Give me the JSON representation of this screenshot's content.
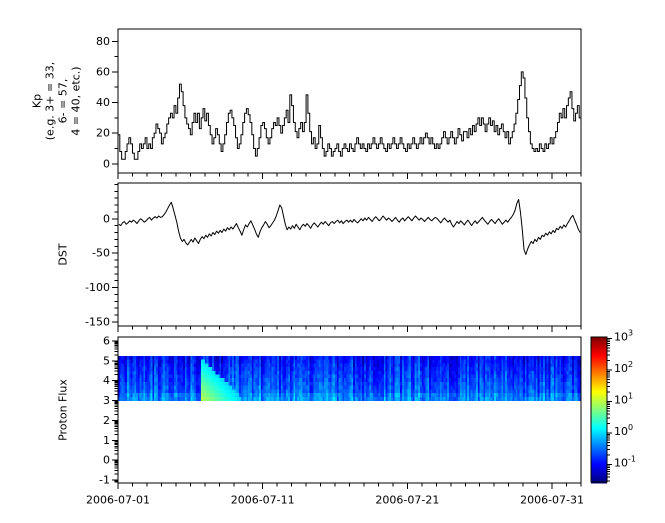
{
  "figure": {
    "background": "#ffffff",
    "axis_color": "#000000",
    "line_color": "#000000"
  },
  "x_axis": {
    "domain_days": [
      0,
      32
    ],
    "major_tick_days": [
      0,
      10,
      20,
      30
    ],
    "major_tick_labels": [
      "2006-07-01",
      "2006-07-11",
      "2006-07-21",
      "2006-07-31"
    ],
    "minor_tick_interval_days": 1
  },
  "chart_data": [
    {
      "id": "kp",
      "type": "line",
      "style": "step",
      "ylabel_lines": [
        "Kp",
        "(e.g. 3+ = 33,",
        "6- = 57,",
        "4 = 40, etc.)"
      ],
      "ylim": [
        -6,
        88
      ],
      "yticks": [
        0,
        20,
        40,
        60,
        80
      ],
      "y_minor_interval": 10,
      "x_interval_days": 0.125,
      "values_by_day": [
        [
          19,
          8,
          3,
          3,
          8,
          13,
          17,
          13
        ],
        [
          7,
          3,
          3,
          8,
          13,
          10,
          13,
          17
        ],
        [
          10,
          13,
          10,
          17,
          20,
          26,
          23,
          20
        ],
        [
          13,
          17,
          20,
          26,
          30,
          33,
          30,
          38
        ],
        [
          33,
          43,
          52,
          47,
          38,
          30,
          26,
          23
        ],
        [
          19,
          27,
          33,
          27,
          33,
          23,
          30,
          36
        ],
        [
          28,
          33,
          25,
          19,
          13,
          17,
          23,
          19
        ],
        [
          13,
          8,
          13,
          19,
          27,
          33,
          35,
          30
        ],
        [
          25,
          17,
          10,
          13,
          19,
          27,
          33,
          36
        ],
        [
          32,
          27,
          19,
          10,
          5,
          10,
          17,
          25
        ],
        [
          27,
          23,
          17,
          13,
          17,
          23,
          27,
          25
        ],
        [
          30,
          25,
          20,
          25,
          30,
          35,
          27,
          45
        ],
        [
          38,
          27,
          21,
          17,
          23,
          27,
          21,
          27
        ],
        [
          45,
          33,
          21,
          13,
          17,
          10,
          13,
          25
        ],
        [
          17,
          10,
          5,
          8,
          13,
          10,
          5,
          8
        ],
        [
          10,
          13,
          8,
          5,
          10,
          13,
          10,
          8
        ],
        [
          13,
          10,
          8,
          13,
          17,
          13,
          10,
          13
        ],
        [
          10,
          8,
          13,
          10,
          13,
          17,
          13,
          10
        ],
        [
          13,
          17,
          13,
          10,
          8,
          13,
          10,
          13
        ],
        [
          17,
          13,
          10,
          13,
          17,
          13,
          10,
          8
        ],
        [
          13,
          10,
          13,
          17,
          13,
          10,
          13,
          17
        ],
        [
          13,
          17,
          20,
          17,
          13,
          17,
          13,
          10
        ],
        [
          13,
          10,
          13,
          17,
          21,
          17,
          13,
          17
        ],
        [
          21,
          17,
          13,
          17,
          23,
          19,
          15,
          21
        ],
        [
          21,
          17,
          23,
          19,
          25,
          21,
          26,
          30
        ],
        [
          25,
          30,
          26,
          21,
          26,
          30,
          25,
          28
        ],
        [
          21,
          25,
          19,
          23,
          26,
          21,
          17,
          21
        ],
        [
          13,
          17,
          21,
          26,
          33,
          42,
          51,
          60
        ],
        [
          56,
          43,
          30,
          21,
          13,
          10,
          8,
          10
        ],
        [
          8,
          13,
          10,
          8,
          13,
          10,
          13,
          17
        ],
        [
          13,
          17,
          21,
          27,
          33,
          30,
          36,
          30
        ],
        [
          38,
          43,
          47,
          36,
          28,
          33,
          38,
          30
        ]
      ]
    },
    {
      "id": "dst",
      "type": "line",
      "style": "linear",
      "ylabel": "DST",
      "ylim": [
        -156,
        52
      ],
      "yticks": [
        0,
        -50,
        -100,
        -150
      ],
      "y_minor_interval": 10,
      "x_interval_days": 0.125,
      "values_by_day": [
        [
          -8,
          -10,
          -6,
          -4,
          -8,
          -6,
          -3,
          -5
        ],
        [
          -2,
          -4,
          -7,
          -3,
          0,
          -2,
          -5,
          -3
        ],
        [
          0,
          2,
          -2,
          1,
          3,
          1,
          4,
          2
        ],
        [
          3,
          6,
          10,
          15,
          20,
          24,
          15,
          5
        ],
        [
          -5,
          -18,
          -28,
          -33,
          -30,
          -35,
          -38,
          -34
        ],
        [
          -30,
          -34,
          -28,
          -32,
          -36,
          -30,
          -26,
          -29
        ],
        [
          -24,
          -27,
          -22,
          -25,
          -20,
          -23,
          -18,
          -21
        ],
        [
          -17,
          -20,
          -15,
          -18,
          -13,
          -16,
          -12,
          -15
        ],
        [
          -11,
          -7,
          -13,
          -18,
          -24,
          -16,
          -9,
          -12
        ],
        [
          -7,
          -3,
          -9,
          -15,
          -22,
          -27,
          -19,
          -13
        ],
        [
          -9,
          -4,
          -8,
          -13,
          -10,
          -6,
          -2,
          4
        ],
        [
          12,
          20,
          16,
          4,
          -8,
          -16,
          -12,
          -15
        ],
        [
          -10,
          -14,
          -8,
          -12,
          -16,
          -11,
          -8,
          -11
        ],
        [
          -7,
          -10,
          -14,
          -9,
          -6,
          -9,
          -12,
          -8
        ],
        [
          -5,
          -8,
          -4,
          -7,
          -10,
          -6,
          -4,
          -7
        ],
        [
          -4,
          -2,
          -6,
          -3,
          -7,
          -4,
          -2,
          -5
        ],
        [
          -2,
          -5,
          -1,
          -4,
          -6,
          -3,
          0,
          -3
        ],
        [
          1,
          -2,
          2,
          -1,
          -4,
          0,
          3,
          0
        ],
        [
          -3,
          0,
          4,
          1,
          -2,
          1,
          -1,
          -4
        ],
        [
          -1,
          2,
          -2,
          -5,
          -1,
          1,
          -3,
          0
        ],
        [
          3,
          0,
          -3,
          1,
          4,
          1,
          -2,
          1
        ],
        [
          -1,
          -4,
          -1,
          2,
          -1,
          -3,
          0,
          2
        ],
        [
          0,
          -3,
          -6,
          -2,
          1,
          -2,
          -5,
          -2
        ],
        [
          -8,
          -12,
          -8,
          -4,
          -7,
          -3,
          -6,
          -9
        ],
        [
          -5,
          -2,
          -6,
          -10,
          -6,
          -3,
          -7,
          -4
        ],
        [
          -1,
          2,
          -2,
          -5,
          -8,
          -4,
          -1,
          -4
        ],
        [
          -7,
          -3,
          0,
          -4,
          -8,
          -5,
          -2,
          -5
        ],
        [
          -1,
          2,
          6,
          12,
          22,
          28,
          10,
          -15
        ],
        [
          -45,
          -52,
          -44,
          -38,
          -33,
          -36,
          -30,
          -33
        ],
        [
          -27,
          -30,
          -24,
          -26,
          -21,
          -24,
          -19,
          -22
        ],
        [
          -17,
          -20,
          -14,
          -16,
          -11,
          -14,
          -9,
          -12
        ],
        [
          -7,
          -3,
          2,
          5,
          -2,
          -8,
          -15,
          -20
        ]
      ]
    },
    {
      "id": "proton_flux",
      "type": "heatmap",
      "ylabel": "Proton Flux",
      "ylim": [
        -1.15,
        6.2
      ],
      "yticks": [
        -1,
        0,
        1,
        2,
        3,
        4,
        5,
        6
      ],
      "y_minor_scale": "log-decade",
      "band_y": [
        3.0,
        5.25
      ],
      "x_interval_days": 0.125,
      "base_log10_flux_bottom": -0.45,
      "base_log10_flux_top": -0.95,
      "noise_log10_column": 0.33,
      "noise_log10_cell": 0.15,
      "bottom_edge_bias_log10": 0.12,
      "noise_seed": 7,
      "event": {
        "onset_day": 5.65,
        "end_day": 8.4,
        "peak_log10_flux": 1.05,
        "top_y_at_onset": 5.2,
        "top_y_at_end": 3.2
      },
      "colorbar": {
        "colormap": "jet",
        "log10_range": [
          -1.55,
          3.05
        ],
        "tick_exponents": [
          3,
          2,
          1,
          0,
          -1
        ],
        "tick_label_base": "10"
      }
    }
  ]
}
